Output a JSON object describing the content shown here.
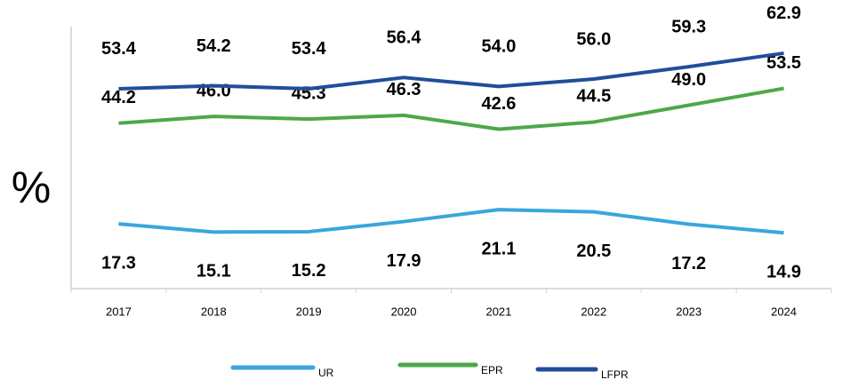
{
  "chart_data": {
    "type": "line",
    "y_label": "%",
    "categories": [
      "2017",
      "2018",
      "2019",
      "2020",
      "2021",
      "2022",
      "2023",
      "2024"
    ],
    "series": [
      {
        "name": "UR",
        "color": "#3aa6dd",
        "values": [
          17.3,
          15.1,
          15.2,
          17.9,
          21.1,
          20.5,
          17.2,
          14.9
        ]
      },
      {
        "name": "EPR",
        "color": "#4ea84a",
        "values": [
          44.2,
          46.0,
          45.3,
          46.3,
          42.6,
          44.5,
          49.0,
          53.5
        ],
        "value_labels": [
          "44.2",
          "46.0",
          "45.3",
          "46.3",
          "42.6",
          "44.5",
          "49.0",
          "53.5"
        ]
      },
      {
        "name": "LFPR",
        "color": "#1f4e9c",
        "values": [
          53.4,
          54.2,
          53.4,
          56.4,
          54.0,
          56.0,
          59.3,
          62.9
        ],
        "value_labels": [
          "53.4",
          "54.2",
          "53.4",
          "56.4",
          "54.0",
          "56.0",
          "59.3",
          "62.9"
        ]
      }
    ],
    "ylim": [
      0,
      70
    ],
    "legend": "bottom"
  }
}
